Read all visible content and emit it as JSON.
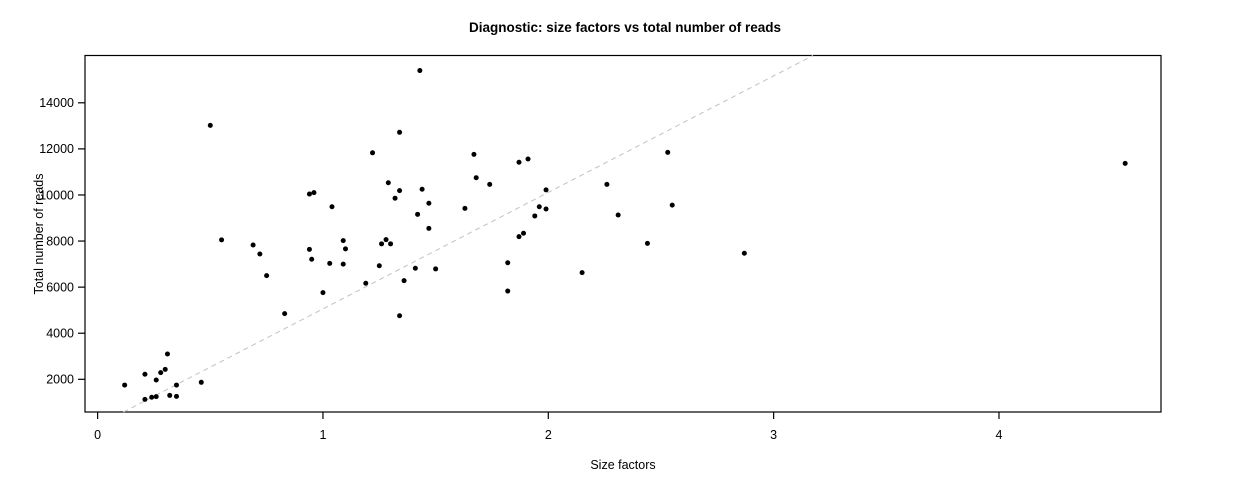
{
  "chart_data": {
    "type": "scatter",
    "title": "Diagnostic: size factors vs total number of reads",
    "xlabel": "Size factors",
    "ylabel": "Total number of reads",
    "x_ticks": [
      0,
      1,
      2,
      3,
      4
    ],
    "y_ticks": [
      2000,
      4000,
      6000,
      8000,
      10000,
      12000,
      14000
    ],
    "xlim": [
      -0.056,
      4.719
    ],
    "ylim": [
      581,
      16053
    ],
    "grid": false,
    "legend": "none",
    "point_color": "#000000",
    "axis_color": "#000000",
    "reference_line": {
      "style": "dashed",
      "color": "#c6c6c6",
      "slope": 5056,
      "intercept": 0
    },
    "points": [
      [
        0.12,
        1750
      ],
      [
        0.21,
        2220
      ],
      [
        0.26,
        1970
      ],
      [
        0.28,
        2290
      ],
      [
        0.3,
        2430
      ],
      [
        0.31,
        3100
      ],
      [
        0.35,
        1750
      ],
      [
        0.46,
        1870
      ],
      [
        0.21,
        1130
      ],
      [
        0.24,
        1220
      ],
      [
        0.26,
        1250
      ],
      [
        0.32,
        1300
      ],
      [
        0.35,
        1260
      ],
      [
        0.5,
        13020
      ],
      [
        0.55,
        8050
      ],
      [
        0.69,
        7830
      ],
      [
        0.72,
        7440
      ],
      [
        0.75,
        6500
      ],
      [
        0.83,
        4850
      ],
      [
        0.94,
        10040
      ],
      [
        0.96,
        10100
      ],
      [
        0.94,
        7640
      ],
      [
        0.95,
        7210
      ],
      [
        1.0,
        5760
      ],
      [
        1.03,
        7030
      ],
      [
        1.04,
        9490
      ],
      [
        1.09,
        7000
      ],
      [
        1.09,
        8020
      ],
      [
        1.1,
        7660
      ],
      [
        1.19,
        6170
      ],
      [
        1.22,
        11830
      ],
      [
        1.25,
        6930
      ],
      [
        1.26,
        7880
      ],
      [
        1.28,
        8060
      ],
      [
        1.3,
        7880
      ],
      [
        1.29,
        10530
      ],
      [
        1.32,
        9860
      ],
      [
        1.34,
        10190
      ],
      [
        1.34,
        12720
      ],
      [
        1.34,
        4760
      ],
      [
        1.36,
        6280
      ],
      [
        1.41,
        6820
      ],
      [
        1.43,
        15400
      ],
      [
        1.44,
        10250
      ],
      [
        1.42,
        9160
      ],
      [
        1.47,
        9640
      ],
      [
        1.47,
        8550
      ],
      [
        1.5,
        6790
      ],
      [
        1.63,
        9420
      ],
      [
        1.67,
        11760
      ],
      [
        1.68,
        10750
      ],
      [
        1.74,
        10460
      ],
      [
        1.82,
        7060
      ],
      [
        1.82,
        5830
      ],
      [
        1.87,
        11420
      ],
      [
        1.87,
        8190
      ],
      [
        1.89,
        8340
      ],
      [
        1.91,
        11560
      ],
      [
        1.94,
        9090
      ],
      [
        1.96,
        9490
      ],
      [
        1.99,
        9390
      ],
      [
        1.99,
        10220
      ],
      [
        2.15,
        6630
      ],
      [
        2.26,
        10460
      ],
      [
        2.31,
        9130
      ],
      [
        2.44,
        7900
      ],
      [
        2.53,
        11850
      ],
      [
        2.55,
        9560
      ],
      [
        2.87,
        7470
      ],
      [
        4.56,
        11370
      ]
    ]
  }
}
